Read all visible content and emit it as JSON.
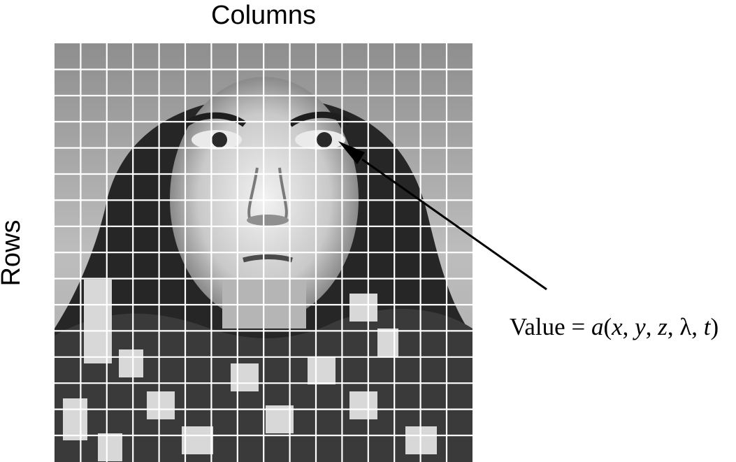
{
  "labels": {
    "columns": "Columns",
    "rows": "Rows"
  },
  "formula": {
    "prefix": "Value = ",
    "func": "a",
    "open": "(",
    "x": "x",
    "sep1": ", ",
    "y": "y",
    "sep2": ", ",
    "z": "z",
    "sep3": ", ",
    "lambda": "λ",
    "sep4": ", ",
    "t": "t",
    "close": ")"
  },
  "image": {
    "subject": "grayscale portrait of a woman in a light hat and patterned scarf, overlaid with a pixel grid",
    "grid_columns": 16,
    "grid_rows": 16
  },
  "colors": {
    "grid_lines": "#ffffff",
    "arrow": "#000000",
    "text": "#000000"
  }
}
